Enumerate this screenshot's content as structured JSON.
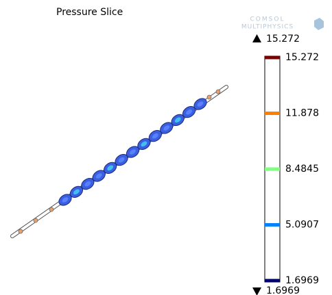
{
  "chart_data": {
    "type": "slice",
    "title": "Pressure Slice",
    "logo": [
      "COMSOL",
      "MULTIPHYSICS"
    ],
    "max": 15.272,
    "min": 1.6969,
    "colorbar": {
      "lim": [
        1.6969,
        15.272
      ],
      "ticks": [
        15.272,
        11.878,
        8.4845,
        5.0907,
        1.6969
      ],
      "colors": [
        "#7a0000",
        "#ff8000",
        "#80ff80",
        "#0080ff",
        "#00006e"
      ]
    }
  }
}
